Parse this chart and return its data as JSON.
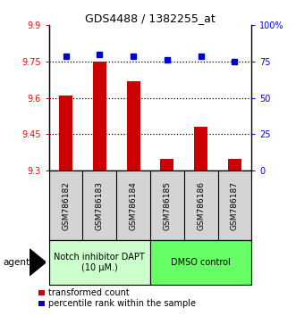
{
  "title": "GDS4488 / 1382255_at",
  "samples": [
    "GSM786182",
    "GSM786183",
    "GSM786184",
    "GSM786185",
    "GSM786186",
    "GSM786187"
  ],
  "red_values": [
    9.61,
    9.75,
    9.67,
    9.35,
    9.48,
    9.35
  ],
  "blue_values": [
    79,
    80,
    79,
    76,
    79,
    75
  ],
  "ylim_left": [
    9.3,
    9.9
  ],
  "ylim_right": [
    0,
    100
  ],
  "yticks_left": [
    9.3,
    9.45,
    9.6,
    9.75,
    9.9
  ],
  "ytick_labels_left": [
    "9.3",
    "9.45",
    "9.6",
    "9.75",
    "9.9"
  ],
  "yticks_right": [
    0,
    25,
    50,
    75,
    100
  ],
  "ytick_labels_right": [
    "0",
    "25",
    "50",
    "75",
    "100%"
  ],
  "hlines": [
    9.45,
    9.6,
    9.75
  ],
  "group1_label": "Notch inhibitor DAPT\n(10 μM.)",
  "group2_label": "DMSO control",
  "group1_color": "#ccffcc",
  "group2_color": "#66ff66",
  "bar_color": "#cc0000",
  "dot_color": "#0000cc",
  "agent_label": "agent",
  "legend_red": "transformed count",
  "legend_blue": "percentile rank within the sample",
  "bar_width": 0.4,
  "fig_width": 3.31,
  "fig_height": 3.54,
  "dpi": 100
}
